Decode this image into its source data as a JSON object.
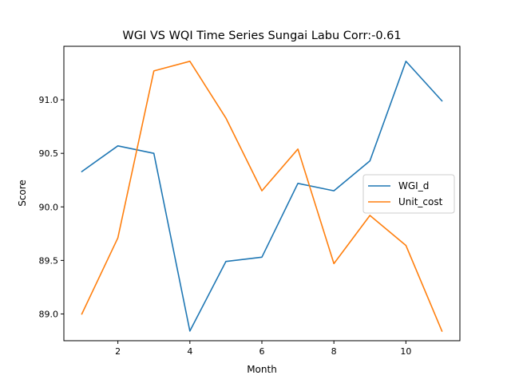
{
  "chart_data": {
    "type": "line",
    "title": "WGI VS WQI Time Series Sungai Labu Corr:-0.61",
    "xlabel": "Month",
    "ylabel": "Score",
    "xlim": [
      0.5,
      11.5
    ],
    "ylim": [
      88.75,
      91.5
    ],
    "xticks": [
      2,
      4,
      6,
      8,
      10
    ],
    "xtick_labels": [
      "2",
      "4",
      "6",
      "8",
      "10"
    ],
    "yticks": [
      89.0,
      89.5,
      90.0,
      90.5,
      91.0
    ],
    "ytick_labels": [
      "89.0",
      "89.5",
      "90.0",
      "90.5",
      "91.0"
    ],
    "grid": false,
    "legend_position": "center-right",
    "x": [
      1,
      2,
      3,
      4,
      5,
      6,
      7,
      8,
      9,
      10,
      11
    ],
    "series": [
      {
        "name": "WGI_d",
        "color": "#1f77b4",
        "values": [
          90.33,
          90.57,
          90.5,
          88.84,
          89.49,
          89.53,
          90.22,
          90.15,
          90.43,
          91.36,
          90.99
        ]
      },
      {
        "name": "Unit_cost",
        "color": "#ff7f0e",
        "values": [
          89.0,
          89.71,
          91.27,
          91.36,
          90.83,
          90.15,
          90.54,
          89.47,
          89.92,
          89.64,
          88.84
        ]
      }
    ]
  }
}
